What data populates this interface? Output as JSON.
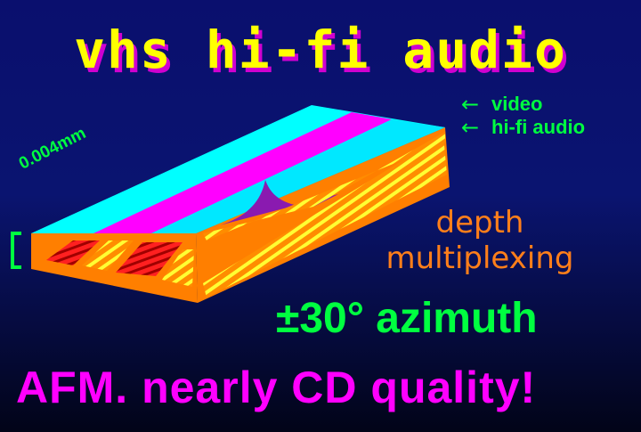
{
  "title": "vhs hi-fi audio",
  "labels": {
    "video": "video",
    "hifi_audio": "hi-fi audio",
    "thickness": "0.004mm",
    "depth_line1": "depth",
    "depth_line2": "multiplexing",
    "azimuth": "±30° azimuth",
    "afm": "AFM. nearly CD quality!"
  },
  "icons": {
    "video_arrow": "←",
    "hifi_arrow": "←"
  },
  "colors": {
    "title": "#ffff00",
    "title_shadow": "#d000d0",
    "video_track": "#00ffff",
    "audio_track": "#ff00ff",
    "tape_body": "#ff7f00",
    "hifi_stripes": "#ffff00",
    "depth_stripes": "#ff0000",
    "labels_green": "#00ff40",
    "label_orange": "#ff7f1a",
    "label_magenta": "#ff00ff"
  }
}
